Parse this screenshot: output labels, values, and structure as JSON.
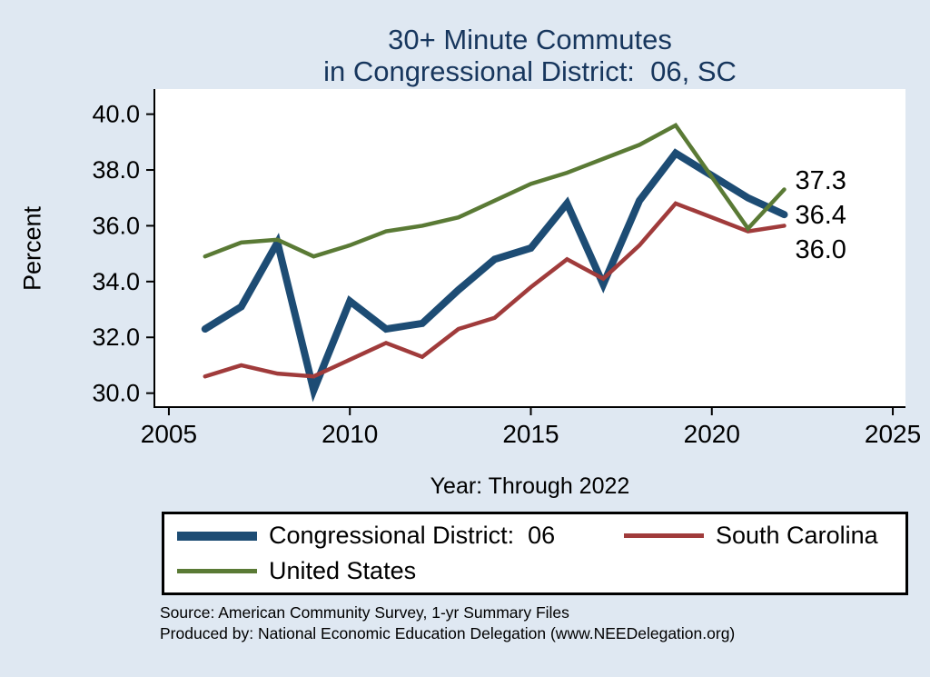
{
  "title": {
    "line1": "30+ Minute Commutes",
    "line2": "in Congressional District:  06, SC"
  },
  "source": {
    "line1": "Source: American Community Survey, 1-yr Summary Files",
    "line2": "Produced by: National Economic Education Delegation (www.NEEDelegation.org)"
  },
  "colors": {
    "background": "#dfe8f2",
    "title_text": "#17365d",
    "axis": "#000000",
    "district": "#1d4c74",
    "state": "#a03b3b",
    "nation": "#5a7a35"
  },
  "chart_data": {
    "type": "line",
    "title": "30+ Minute Commutes in Congressional District: 06, SC",
    "xlabel": "Year: Through 2022",
    "ylabel": "Percent",
    "xlim": [
      2004.6,
      2025.35
    ],
    "ylim": [
      29.5,
      40.9
    ],
    "xticks": [
      2005,
      2010,
      2015,
      2020,
      2025
    ],
    "yticks": [
      30.0,
      32.0,
      34.0,
      36.0,
      38.0,
      40.0
    ],
    "grid": false,
    "legend_position": "bottom",
    "series": [
      {
        "name": "Congressional District:  06",
        "color": "#1d4c74",
        "width": 8,
        "x": [
          2006,
          2007,
          2008,
          2009,
          2010,
          2011,
          2012,
          2013,
          2014,
          2015,
          2016,
          2017,
          2018,
          2019,
          2021,
          2022
        ],
        "y": [
          32.3,
          33.1,
          35.4,
          30.1,
          33.3,
          32.3,
          32.5,
          33.7,
          34.8,
          35.2,
          36.8,
          33.9,
          36.9,
          38.6,
          37.0,
          36.4
        ]
      },
      {
        "name": "South Carolina",
        "color": "#a03b3b",
        "width": 4.5,
        "x": [
          2006,
          2007,
          2008,
          2009,
          2010,
          2011,
          2012,
          2013,
          2014,
          2015,
          2016,
          2017,
          2018,
          2019,
          2021,
          2022
        ],
        "y": [
          30.6,
          31.0,
          30.7,
          30.6,
          31.2,
          31.8,
          31.3,
          32.3,
          32.7,
          33.8,
          34.8,
          34.1,
          35.3,
          36.8,
          35.8,
          36.0
        ]
      },
      {
        "name": "United States",
        "color": "#5a7a35",
        "width": 4.5,
        "x": [
          2006,
          2007,
          2008,
          2009,
          2010,
          2011,
          2012,
          2013,
          2014,
          2015,
          2016,
          2017,
          2018,
          2019,
          2021,
          2022
        ],
        "y": [
          34.9,
          35.4,
          35.5,
          34.9,
          35.3,
          35.8,
          36.0,
          36.3,
          36.9,
          37.5,
          37.9,
          38.4,
          38.9,
          39.6,
          35.9,
          37.3
        ]
      }
    ],
    "end_labels": [
      {
        "text": "37.3",
        "series": 2
      },
      {
        "text": "36.4",
        "series": 0
      },
      {
        "text": "36.0",
        "series": 1
      }
    ]
  }
}
